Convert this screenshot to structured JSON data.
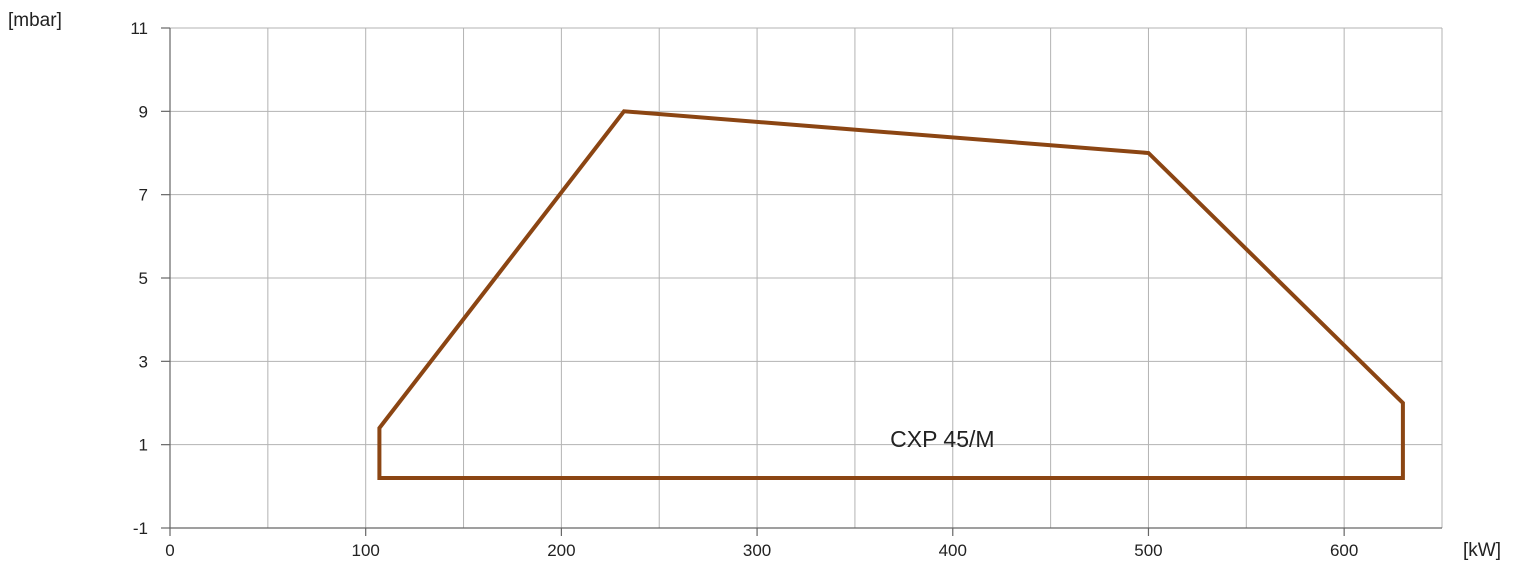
{
  "chart_data": {
    "type": "line",
    "title": "",
    "xlabel": "[kW]",
    "ylabel": "[mbar]",
    "xlim": [
      0,
      650
    ],
    "ylim": [
      -1,
      11
    ],
    "x_ticks": [
      {
        "value": 0,
        "label": "0"
      },
      {
        "value": 100,
        "label": "100"
      },
      {
        "value": 200,
        "label": "200"
      },
      {
        "value": 300,
        "label": "300"
      },
      {
        "value": 400,
        "label": "400"
      },
      {
        "value": 500,
        "label": "500"
      },
      {
        "value": 600,
        "label": "600"
      }
    ],
    "x_grid": [
      50,
      100,
      150,
      200,
      250,
      300,
      350,
      400,
      450,
      500,
      550,
      600,
      650
    ],
    "y_ticks": [
      {
        "value": -1,
        "label": "-1"
      },
      {
        "value": 1,
        "label": "1"
      },
      {
        "value": 3,
        "label": "3"
      },
      {
        "value": 5,
        "label": "5"
      },
      {
        "value": 7,
        "label": "7"
      },
      {
        "value": 9,
        "label": "9"
      },
      {
        "value": 11,
        "label": "11"
      }
    ],
    "grid": true,
    "series": [
      {
        "name": "CXP 45/M",
        "closed": true,
        "points": [
          {
            "x": 107,
            "y": 0.2
          },
          {
            "x": 107,
            "y": 1.4
          },
          {
            "x": 232,
            "y": 9.0
          },
          {
            "x": 500,
            "y": 8.0
          },
          {
            "x": 630,
            "y": 2.0
          },
          {
            "x": 630,
            "y": 0.2
          }
        ]
      }
    ],
    "annotations": [
      {
        "text": "CXP 45/M",
        "x": 368,
        "y": 0.95
      }
    ],
    "colors": {
      "series": "#8b4513",
      "grid": "#b3b3b3",
      "axis": "#666666",
      "text": "#222222"
    }
  }
}
